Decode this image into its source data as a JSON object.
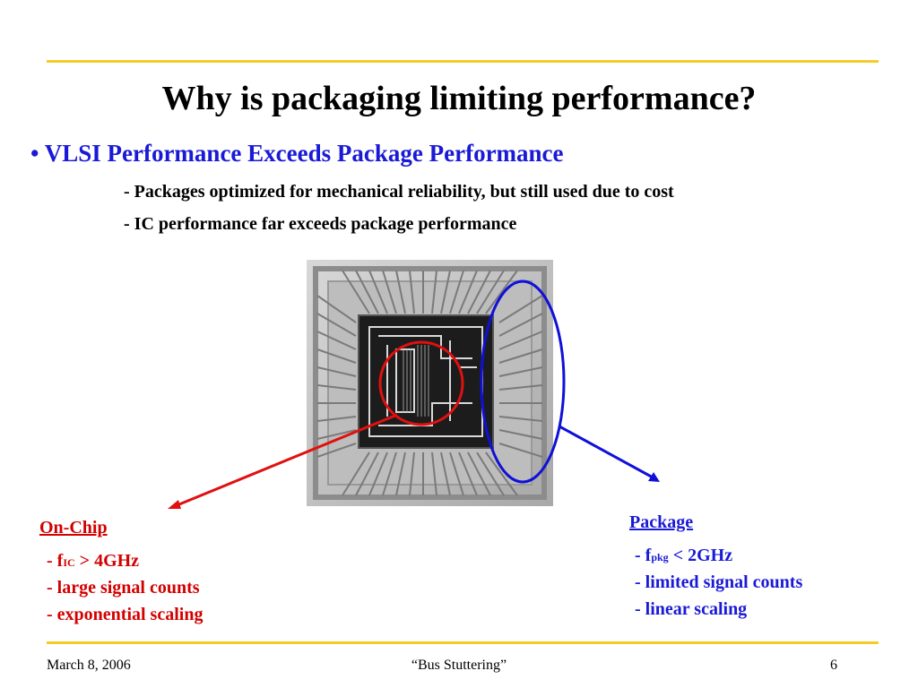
{
  "slide": {
    "title": "Why is packaging limiting performance?",
    "bullet": "• VLSI Performance Exceeds Package Performance",
    "subpoints": [
      "- Packages optimized for mechanical reliability, but still used due to cost",
      "- IC performance far exceeds package performance"
    ]
  },
  "on_chip": {
    "heading": "On-Chip",
    "item1_prefix": "- f",
    "item1_sub": "IC",
    "item1_suffix": " > 4GHz",
    "item2": "- large signal counts",
    "item3": "- exponential scaling"
  },
  "package": {
    "heading": "Package",
    "item1_prefix": "- f",
    "item1_sub": "pkg",
    "item1_suffix": " < 2GHz",
    "item2": "- limited signal counts",
    "item3": "- linear scaling"
  },
  "footer": {
    "date": "March 8, 2006",
    "talk": "“Bus Stuttering”",
    "page": "6"
  },
  "colors": {
    "rule": "#f2cd2a",
    "blue_text": "#1a1ad6",
    "red_text": "#d40000",
    "red_annotation": "#e01010",
    "blue_annotation": "#1010d8"
  },
  "image": {
    "description_icon": "chip-die-photo"
  }
}
